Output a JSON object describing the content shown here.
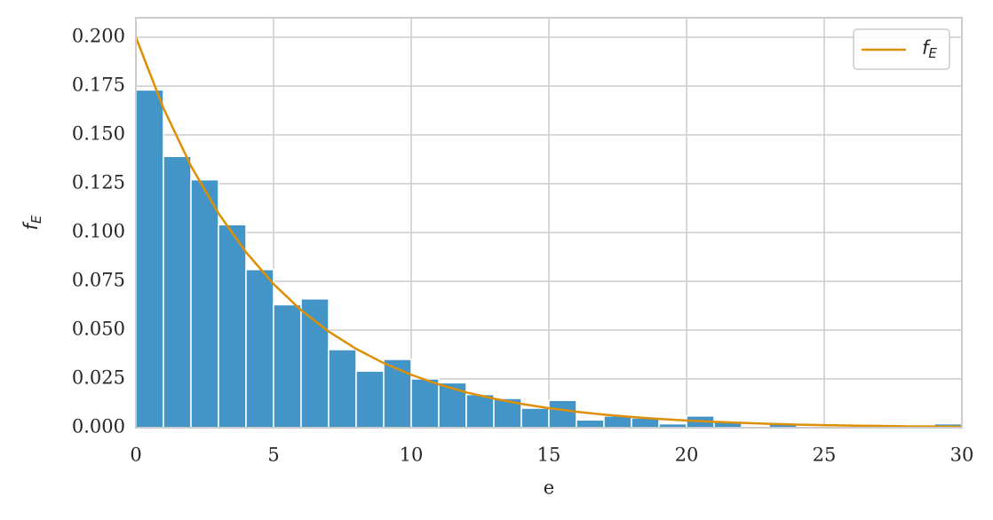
{
  "chart_data": {
    "type": "histogram",
    "bins": [
      0,
      1,
      2,
      3,
      4,
      5,
      6,
      7,
      8,
      9,
      10,
      11,
      12,
      13,
      14,
      15,
      16,
      17,
      18,
      19,
      20,
      21,
      22,
      23,
      24,
      25,
      26,
      27,
      28,
      29,
      30
    ],
    "values": [
      0.173,
      0.139,
      0.127,
      0.104,
      0.081,
      0.063,
      0.066,
      0.04,
      0.029,
      0.035,
      0.025,
      0.023,
      0.017,
      0.015,
      0.01,
      0.014,
      0.004,
      0.006,
      0.005,
      0.002,
      0.006,
      0.003,
      0,
      0.002,
      0,
      0,
      0,
      0,
      0,
      0.002
    ],
    "color": "#4295c6",
    "line": {
      "name": {
        "text": "f",
        "subscript": "E"
      },
      "color": "#de8f05",
      "x": [
        0,
        1,
        2,
        3,
        4,
        5,
        6,
        7,
        8,
        9,
        10,
        11,
        12,
        13,
        14,
        15,
        16,
        17,
        18,
        19,
        20,
        21,
        22,
        23,
        24,
        25,
        26,
        27,
        28,
        29,
        30
      ],
      "values": [
        0.2,
        0.1637,
        0.1341,
        0.1098,
        0.0899,
        0.0736,
        0.0602,
        0.0493,
        0.0404,
        0.0331,
        0.0271,
        0.0222,
        0.0181,
        0.0149,
        0.0122,
        0.01,
        0.0082,
        0.0067,
        0.0055,
        0.0045,
        0.0037,
        0.003,
        0.0025,
        0.002,
        0.0016,
        0.0013,
        0.0011,
        0.0009,
        0.0007,
        0.0006,
        0.0005
      ]
    },
    "xlabel": "e",
    "ylabel": {
      "text": "f",
      "subscript": "E"
    },
    "xlim": [
      0,
      30
    ],
    "ylim": [
      0,
      0.21
    ],
    "xticks": [
      0,
      5,
      10,
      15,
      20,
      25,
      30
    ],
    "yticks": [
      {
        "value": 0,
        "label": "0.000"
      },
      {
        "value": 0.025,
        "label": "0.025"
      },
      {
        "value": 0.05,
        "label": "0.050"
      },
      {
        "value": 0.075,
        "label": "0.075"
      },
      {
        "value": 0.1,
        "label": "0.100"
      },
      {
        "value": 0.125,
        "label": "0.125"
      },
      {
        "value": 0.15,
        "label": "0.150"
      },
      {
        "value": 0.175,
        "label": "0.175"
      },
      {
        "value": 0.2,
        "label": "0.200"
      }
    ],
    "grid": true,
    "legend": "upper right"
  }
}
